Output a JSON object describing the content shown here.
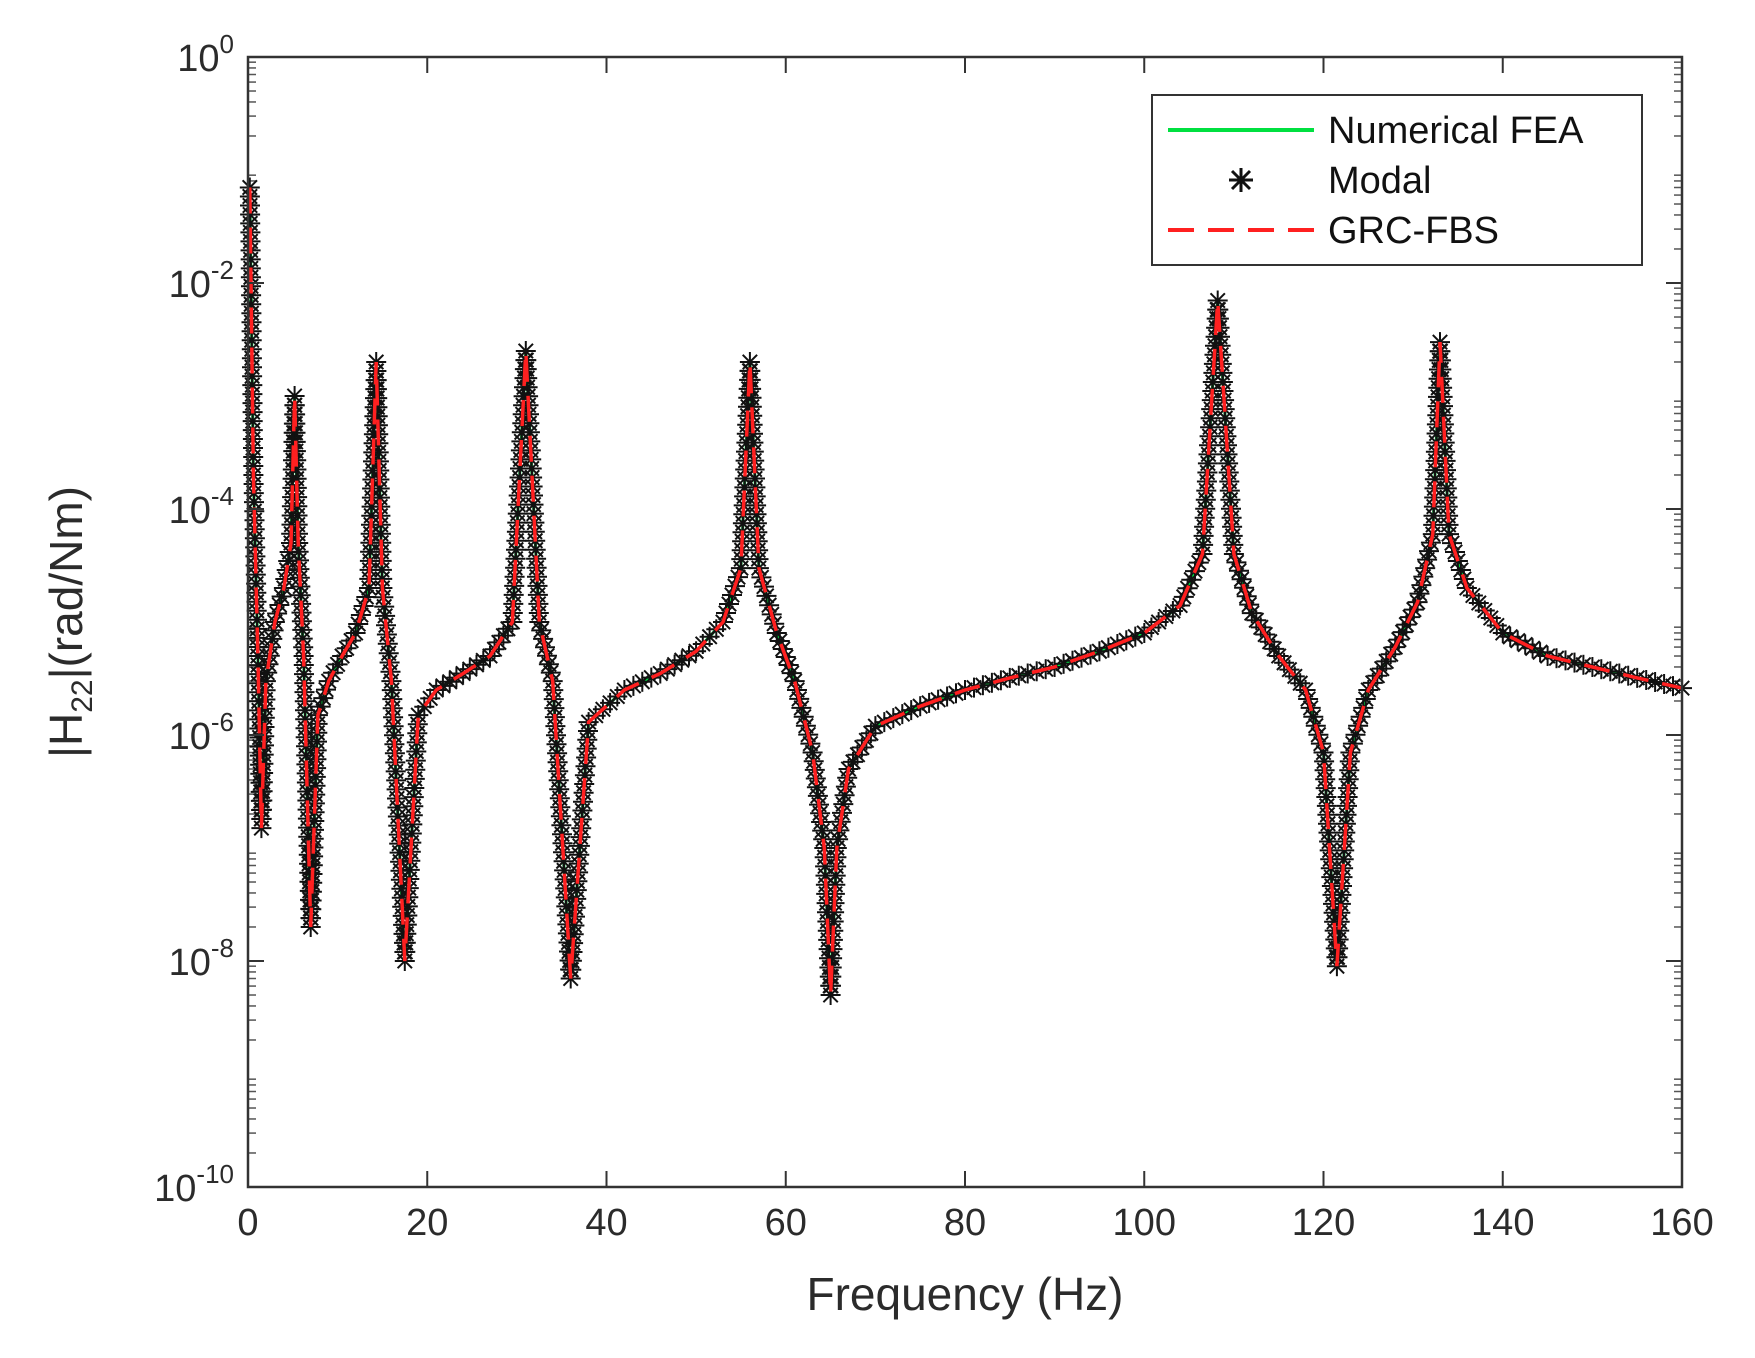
{
  "chart_data": {
    "type": "line",
    "title": "",
    "xlabel": "Frequency (Hz)",
    "ylabel": {
      "prefix": "|H",
      "subscript": "22",
      "suffix": "|(rad/Nm)"
    },
    "xlim": [
      0,
      160
    ],
    "ylim": [
      1e-10,
      1
    ],
    "yscale": "log",
    "x_ticks": [
      0,
      20,
      40,
      60,
      80,
      100,
      120,
      140,
      160
    ],
    "x_tick_labels": [
      "0",
      "20",
      "40",
      "60",
      "80",
      "100",
      "120",
      "140",
      "160"
    ],
    "y_ticks": [
      {
        "value": 1,
        "base": "10",
        "exp": "0"
      },
      {
        "value": 0.01,
        "base": "10",
        "exp": "-2"
      },
      {
        "value": 0.0001,
        "base": "10",
        "exp": "-4"
      },
      {
        "value": 1e-06,
        "base": "10",
        "exp": "-6"
      },
      {
        "value": 1e-08,
        "base": "10",
        "exp": "-8"
      },
      {
        "value": 1e-10,
        "base": "10",
        "exp": "-10"
      }
    ],
    "legend_position": "top-right",
    "series": [
      {
        "name": "Numerical FEA",
        "style": "solid",
        "color": "#00e040"
      },
      {
        "name": "Modal",
        "style": "asterisk-markers",
        "color": "#111111"
      },
      {
        "name": "GRC-FBS",
        "style": "dashed",
        "color": "#ff2020"
      }
    ],
    "resonances_hz": [
      0.2,
      5.2,
      14.3,
      31.0,
      56.0,
      108.2,
      133.0
    ],
    "resonance_peaks": [
      0.07,
      0.001,
      0.002,
      0.0025,
      0.002,
      0.007,
      0.003
    ],
    "antiresonances_hz": [
      1.5,
      7.0,
      17.5,
      36.0,
      65.0,
      121.5
    ],
    "antiresonance_minima": [
      1.5e-07,
      2e-08,
      1e-08,
      7e-09,
      5e-09,
      9e-09
    ],
    "curve_points": [
      [
        0.2,
        0.07
      ],
      [
        0.6,
        0.0002
      ],
      [
        1.1,
        5e-06
      ],
      [
        1.5,
        1.5e-07
      ],
      [
        2.0,
        3e-06
      ],
      [
        3.0,
        1e-05
      ],
      [
        4.0,
        2e-05
      ],
      [
        4.8,
        5e-05
      ],
      [
        5.2,
        0.001
      ],
      [
        5.6,
        5e-05
      ],
      [
        6.2,
        5e-06
      ],
      [
        7.0,
        2e-08
      ],
      [
        7.8,
        1.5e-06
      ],
      [
        9.0,
        3e-06
      ],
      [
        10.5,
        5e-06
      ],
      [
        12.0,
        8e-06
      ],
      [
        13.5,
        2e-05
      ],
      [
        14.3,
        0.002
      ],
      [
        15.0,
        2e-05
      ],
      [
        16.0,
        3e-06
      ],
      [
        17.5,
        1e-08
      ],
      [
        19.0,
        1.5e-06
      ],
      [
        21.0,
        2.5e-06
      ],
      [
        24.0,
        3.5e-06
      ],
      [
        27.0,
        5e-06
      ],
      [
        29.5,
        1e-05
      ],
      [
        31.0,
        0.0025
      ],
      [
        32.5,
        1e-05
      ],
      [
        34.0,
        3e-06
      ],
      [
        36.0,
        7e-09
      ],
      [
        38.0,
        1.3e-06
      ],
      [
        42.0,
        2.5e-06
      ],
      [
        46.0,
        3.5e-06
      ],
      [
        50.0,
        5.5e-06
      ],
      [
        53.0,
        1e-05
      ],
      [
        55.0,
        3e-05
      ],
      [
        56.0,
        0.002
      ],
      [
        57.0,
        3e-05
      ],
      [
        59.0,
        8e-06
      ],
      [
        61.0,
        3e-06
      ],
      [
        63.0,
        7e-07
      ],
      [
        64.3,
        1e-07
      ],
      [
        65.0,
        5e-09
      ],
      [
        65.7,
        1e-07
      ],
      [
        67.0,
        5e-07
      ],
      [
        70.0,
        1.2e-06
      ],
      [
        75.0,
        1.8e-06
      ],
      [
        80.0,
        2.5e-06
      ],
      [
        85.0,
        3.2e-06
      ],
      [
        90.0,
        4e-06
      ],
      [
        95.0,
        5.5e-06
      ],
      [
        100.0,
        8e-06
      ],
      [
        104.0,
        1.4e-05
      ],
      [
        106.5,
        4e-05
      ],
      [
        108.2,
        0.007
      ],
      [
        110.0,
        4e-05
      ],
      [
        112.0,
        1.2e-05
      ],
      [
        115.0,
        5e-06
      ],
      [
        118.0,
        2.5e-06
      ],
      [
        120.0,
        7e-07
      ],
      [
        121.5,
        9e-09
      ],
      [
        123.0,
        7e-07
      ],
      [
        125.0,
        2.5e-06
      ],
      [
        128.0,
        6e-06
      ],
      [
        130.5,
        1.5e-05
      ],
      [
        132.2,
        6e-05
      ],
      [
        133.0,
        0.003
      ],
      [
        134.0,
        6e-05
      ],
      [
        136.0,
        2e-05
      ],
      [
        140.0,
        8e-06
      ],
      [
        145.0,
        5e-06
      ],
      [
        150.0,
        4e-06
      ],
      [
        155.0,
        3.2e-06
      ],
      [
        160.0,
        2.6e-06
      ]
    ]
  }
}
